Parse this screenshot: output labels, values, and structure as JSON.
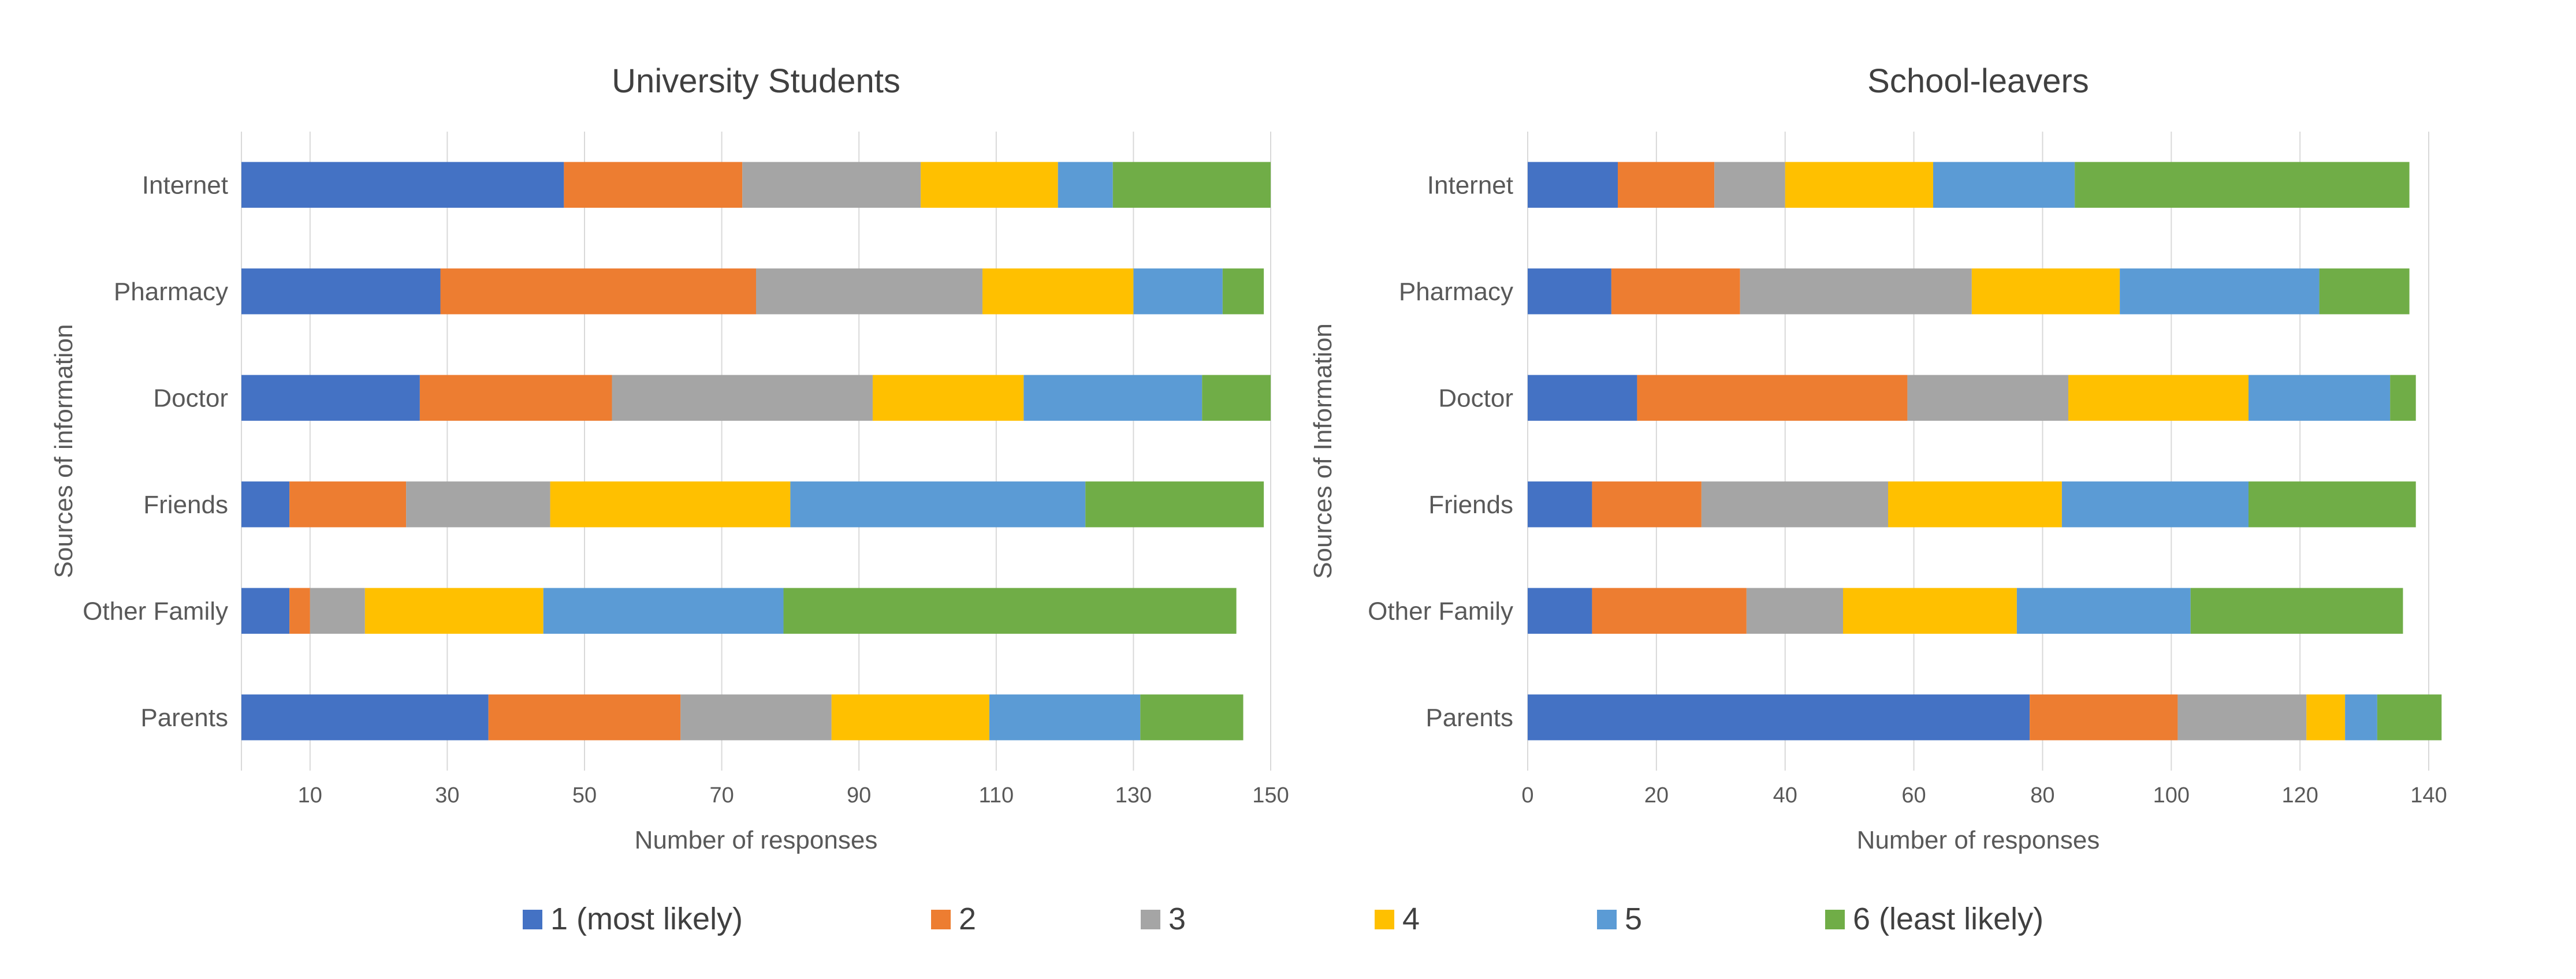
{
  "legend": [
    {
      "label": "1 (most likely)",
      "color": "#4472C4"
    },
    {
      "label": "2",
      "color": "#ED7D31"
    },
    {
      "label": "3",
      "color": "#A5A5A5"
    },
    {
      "label": "4",
      "color": "#FFC000"
    },
    {
      "label": "5",
      "color": "#5B9BD5"
    },
    {
      "label": "6 (least likely)",
      "color": "#70AD47"
    }
  ],
  "chart_data": [
    {
      "type": "bar",
      "orientation": "horizontal",
      "stacked": true,
      "title": "University Students",
      "xlabel": "Number of responses",
      "ylabel": "Sources of information",
      "xlim": [
        0,
        150
      ],
      "xticks": [
        10,
        30,
        50,
        70,
        90,
        110,
        130,
        150
      ],
      "grid": true,
      "categories": [
        "Internet",
        "Pharmacy",
        "Doctor",
        "Friends",
        "Other Family",
        "Parents"
      ],
      "series": [
        {
          "name": "1 (most likely)",
          "values": [
            47,
            29,
            26,
            7,
            7,
            36
          ]
        },
        {
          "name": "2",
          "values": [
            26,
            46,
            28,
            17,
            3,
            28
          ]
        },
        {
          "name": "3",
          "values": [
            26,
            33,
            38,
            21,
            8,
            22
          ]
        },
        {
          "name": "4",
          "values": [
            20,
            22,
            22,
            35,
            26,
            23
          ]
        },
        {
          "name": "5",
          "values": [
            8,
            13,
            26,
            43,
            35,
            22
          ]
        },
        {
          "name": "6 (least likely)",
          "values": [
            23,
            6,
            10,
            26,
            66,
            15
          ]
        }
      ]
    },
    {
      "type": "bar",
      "orientation": "horizontal",
      "stacked": true,
      "title": "School-leavers",
      "xlabel": "Number of responses",
      "ylabel": "Sources of Information",
      "xlim": [
        0,
        140
      ],
      "xticks": [
        0,
        20,
        40,
        60,
        80,
        100,
        120,
        140
      ],
      "grid": true,
      "categories": [
        "Internet",
        "Pharmacy",
        "Doctor",
        "Friends",
        "Other Family",
        "Parents"
      ],
      "series": [
        {
          "name": "1 (most likely)",
          "values": [
            14,
            13,
            17,
            10,
            10,
            78
          ]
        },
        {
          "name": "2",
          "values": [
            15,
            20,
            42,
            17,
            24,
            23
          ]
        },
        {
          "name": "3",
          "values": [
            11,
            36,
            25,
            29,
            15,
            20
          ]
        },
        {
          "name": "4",
          "values": [
            23,
            23,
            28,
            27,
            27,
            6
          ]
        },
        {
          "name": "5",
          "values": [
            22,
            31,
            22,
            29,
            27,
            5
          ]
        },
        {
          "name": "6 (least likely)",
          "values": [
            52,
            14,
            4,
            26,
            33,
            10
          ]
        }
      ]
    }
  ]
}
